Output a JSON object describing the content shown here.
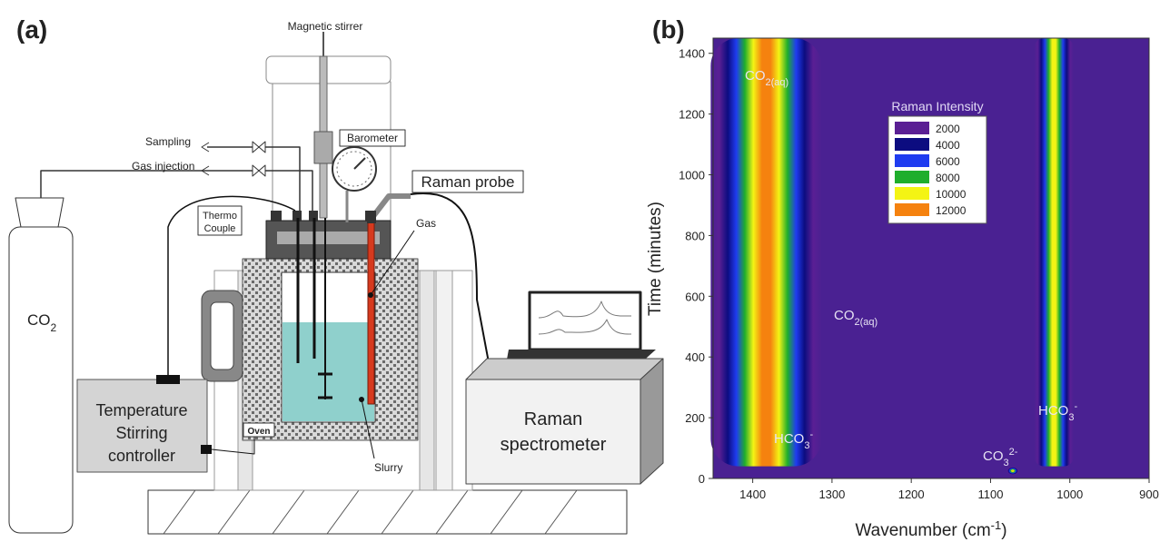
{
  "diagram": {
    "panel_label": "(a)",
    "labels": {
      "magnetic_stirrer": "Magnetic stirrer",
      "sampling": "Sampling",
      "gas_injection": "Gas injection",
      "barometer": "Barometer",
      "raman_probe": "Raman probe",
      "thermo_couple": [
        "Thermo",
        "Couple"
      ],
      "gas": "Gas",
      "co2": {
        "parts": [
          {
            "text": "CO"
          },
          {
            "text": "2",
            "style": "sub"
          }
        ]
      },
      "controller": [
        "Temperature",
        "Stirring",
        "controller"
      ],
      "oven": "Oven",
      "slurry": "Slurry",
      "spectrometer": [
        "Raman",
        "spectrometer"
      ]
    }
  },
  "chart_data": {
    "type": "contour",
    "panel_label": "(b)",
    "x_label": {
      "parts": [
        {
          "text": "Wavenumber (cm"
        },
        {
          "text": "-1",
          "style": "sup"
        },
        {
          "text": ")"
        }
      ]
    },
    "y_label": "Time (minutes)",
    "xlim": [
      1450,
      900
    ],
    "ylim": [
      0,
      1450
    ],
    "xticks": [
      1400,
      1300,
      1200,
      1100,
      1000,
      900
    ],
    "yticks": [
      0,
      200,
      400,
      600,
      800,
      1000,
      1200,
      1400
    ],
    "background_color": "#4a2192",
    "legend_title": "Raman Intensity",
    "levels": [
      {
        "value": 2000,
        "color": "#5a1f94"
      },
      {
        "value": 4000,
        "color": "#0c0c80"
      },
      {
        "value": 6000,
        "color": "#1f3cf0"
      },
      {
        "value": 8000,
        "color": "#1fae2c"
      },
      {
        "value": 10000,
        "color": "#f4f414"
      },
      {
        "value": 12000,
        "color": "#f5820f"
      }
    ],
    "bands": [
      {
        "wavenumber": 1383,
        "intensity": 11000
      },
      {
        "wavenumber": 1020,
        "intensity": 9000
      }
    ],
    "spots": [
      {
        "wavenumber": 1072,
        "time": 25,
        "intensity": 11000
      }
    ],
    "annotations": [
      {
        "parts": [
          {
            "text": "CO"
          },
          {
            "text": "2(aq)",
            "style": "sub"
          }
        ]
      },
      {
        "parts": [
          {
            "text": "CO"
          },
          {
            "text": "2(aq)",
            "style": "sub"
          }
        ]
      },
      {
        "parts": [
          {
            "text": "HCO"
          },
          {
            "text": "3",
            "style": "sub"
          },
          {
            "text": "-",
            "style": "sup"
          }
        ]
      },
      {
        "parts": [
          {
            "text": "HCO"
          },
          {
            "text": "3",
            "style": "sub"
          },
          {
            "text": "-",
            "style": "sup"
          }
        ]
      },
      {
        "parts": [
          {
            "text": "CO"
          },
          {
            "text": "3",
            "style": "sub"
          },
          {
            "text": "2-",
            "style": "sup"
          }
        ]
      }
    ]
  }
}
